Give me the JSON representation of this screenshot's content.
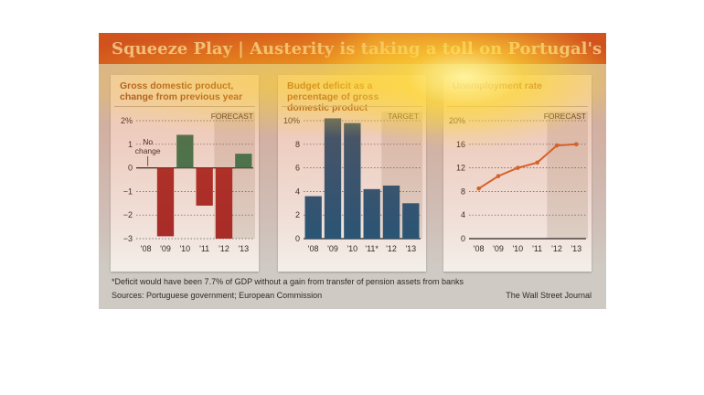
{
  "banner": {
    "title": "Squeeze Play | Austerity is taking a toll on Portugal's economy"
  },
  "colors": {
    "banner": "#c8431c",
    "negative": "#a52a26",
    "positive": "#2f7a52",
    "deficit_bar": "#1f5678",
    "line": "#d4662a",
    "forecast_shade": "#ddd7cc"
  },
  "chart_data": [
    {
      "type": "bar",
      "title": "Gross domestic product, change from previous year",
      "categories": [
        "'08",
        "'09",
        "'10",
        "'11",
        "'12",
        "'13"
      ],
      "values": [
        0,
        -2.9,
        1.4,
        -1.6,
        -3.0,
        0.6
      ],
      "ylim": [
        -3,
        2
      ],
      "yticks": [
        "2%",
        "1",
        "0",
        "−1",
        "−2",
        "−3"
      ],
      "forecast_label": "FORECAST",
      "annotation_lines": [
        "No",
        "change"
      ],
      "grid": true
    },
    {
      "type": "bar",
      "title": "Budget deficit as a percentage of gross domestic product",
      "categories": [
        "'08",
        "'09",
        "'10",
        "'11*",
        "'12",
        "'13"
      ],
      "values": [
        3.6,
        10.2,
        9.8,
        4.2,
        4.5,
        3.0
      ],
      "ylim": [
        0,
        10
      ],
      "yticks": [
        "10%",
        "8",
        "6",
        "4",
        "2",
        "0"
      ],
      "target_label": "TARGET",
      "grid": true
    },
    {
      "type": "line",
      "title": "Unemployment rate",
      "categories": [
        "'08",
        "'09",
        "'10",
        "'11",
        "'12",
        "'13"
      ],
      "values": [
        8.5,
        10.6,
        12.0,
        12.9,
        15.8,
        16.0
      ],
      "ylim": [
        0,
        20
      ],
      "yticks": [
        "20%",
        "16",
        "12",
        "8",
        "4",
        "0"
      ],
      "forecast_label": "FORECAST",
      "grid": true
    }
  ],
  "footnote": "*Deficit would have been 7.7% of GDP without a gain from transfer of pension assets from banks",
  "sources": "Sources: Portuguese government; European Commission",
  "credit": "The Wall Street Journal"
}
